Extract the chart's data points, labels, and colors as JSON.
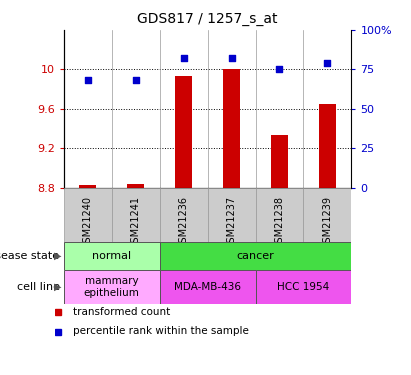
{
  "title": "GDS817 / 1257_s_at",
  "samples": [
    "GSM21240",
    "GSM21241",
    "GSM21236",
    "GSM21237",
    "GSM21238",
    "GSM21239"
  ],
  "transformed_count": [
    8.83,
    8.84,
    9.93,
    10.0,
    9.33,
    9.65
  ],
  "percentile_rank": [
    68,
    68,
    82,
    82,
    75,
    79
  ],
  "ylim_left": [
    8.8,
    10.4
  ],
  "ylim_right": [
    0,
    100
  ],
  "yticks_left": [
    8.8,
    9.2,
    9.6,
    10.0
  ],
  "ytick_labels_left": [
    "8.8",
    "9.2",
    "9.6",
    "10"
  ],
  "yticks_right": [
    0,
    25,
    50,
    75,
    100
  ],
  "ytick_labels_right": [
    "0",
    "25",
    "50",
    "75",
    "100%"
  ],
  "bar_color": "#cc0000",
  "dot_color": "#0000cc",
  "bar_width": 0.35,
  "disease_state": [
    {
      "label": "normal",
      "span": [
        0,
        2
      ],
      "color": "#aaffaa"
    },
    {
      "label": "cancer",
      "span": [
        2,
        6
      ],
      "color": "#44dd44"
    }
  ],
  "cell_line": [
    {
      "label": "mammary\nepithelium",
      "span": [
        0,
        2
      ],
      "color": "#ffaaff"
    },
    {
      "label": "MDA-MB-436",
      "span": [
        2,
        4
      ],
      "color": "#ee55ee"
    },
    {
      "label": "HCC 1954",
      "span": [
        4,
        6
      ],
      "color": "#ee55ee"
    }
  ],
  "bg_color": "#ffffff",
  "plot_bg": "#ffffff",
  "xtick_bg": "#cccccc",
  "left_label_color": "#cc0000",
  "right_label_color": "#0000cc",
  "annotation_row1_label": "disease state",
  "annotation_row2_label": "cell line",
  "legend_items": [
    {
      "label": "transformed count",
      "color": "#cc0000"
    },
    {
      "label": "percentile rank within the sample",
      "color": "#0000cc"
    }
  ],
  "grid_yticks": [
    9.2,
    9.6,
    10.0
  ]
}
